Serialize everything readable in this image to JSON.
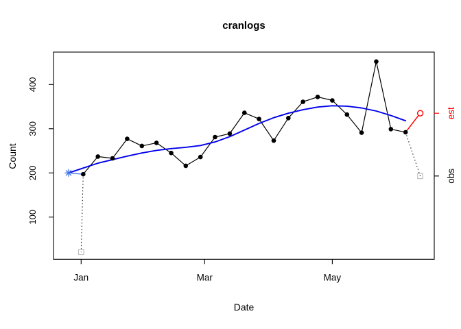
{
  "figure": {
    "background": "#ffffff",
    "box_color": "#000000"
  },
  "chart_data": {
    "type": "line",
    "title": "cranlogs",
    "xlabel": "Date",
    "ylabel": "Count",
    "x_unit": "days since Jan 1",
    "xlim": [
      -13.2,
      168.7
    ],
    "ylim": [
      4.5,
      473.4
    ],
    "grid": false,
    "x_ticks": [
      {
        "label": "Jan",
        "day": 0
      },
      {
        "label": "Mar",
        "day": 59
      },
      {
        "label": "May",
        "day": 120
      }
    ],
    "y_ticks": [
      {
        "label": "100",
        "value": 100
      },
      {
        "label": "200",
        "value": 200
      },
      {
        "label": "300",
        "value": 300
      },
      {
        "label": "400",
        "value": 400
      }
    ],
    "right_axis_ticks": [
      {
        "label": "est",
        "value": 335,
        "color": "#ff0000"
      },
      {
        "label": "obs",
        "value": 193,
        "color": "#000000"
      }
    ],
    "series": [
      {
        "name": "observed-weekly-counts",
        "style": "line+points",
        "marker": "filled-circle",
        "color": "#000000",
        "days": [
          1,
          8,
          15,
          22,
          29,
          36,
          43,
          50,
          57,
          64,
          71,
          78,
          85,
          92,
          99,
          106,
          113,
          120,
          127,
          134,
          141,
          148,
          155
        ],
        "values": [
          197,
          237,
          233,
          277,
          261,
          268,
          245,
          216,
          236,
          281,
          289,
          336,
          322,
          273,
          324,
          361,
          372,
          364,
          332,
          291,
          452,
          299,
          292
        ]
      },
      {
        "name": "smoothed-estimate",
        "style": "line",
        "marker": "none",
        "color": "#0000ee",
        "days": [
          -6,
          1,
          8,
          15,
          22,
          29,
          36,
          43,
          50,
          57,
          64,
          71,
          78,
          85,
          92,
          99,
          106,
          113,
          120,
          127,
          134,
          141,
          148,
          155
        ],
        "values": [
          200,
          211,
          222,
          230,
          238,
          245,
          251,
          255,
          258,
          262,
          270,
          282,
          297,
          312,
          325,
          335,
          343,
          349,
          352,
          351,
          347,
          340,
          330,
          318
        ]
      }
    ],
    "annotations": {
      "init_estimate_marker": {
        "marker": "asterisk",
        "color": "#4678e8",
        "day": -6,
        "value": 200
      },
      "init_connector": {
        "style": "solid",
        "color": "#4678e8",
        "from": {
          "day": -6,
          "value": 200
        },
        "to": {
          "day": 1,
          "value": 197
        }
      },
      "forecast_connector": {
        "style": "solid",
        "color": "#ff0000",
        "from": {
          "day": 155,
          "value": 292
        },
        "to": {
          "day": 162,
          "value": 335
        }
      },
      "forecast_point": {
        "marker": "open-circle",
        "color": "#ff0000",
        "day": 162,
        "value": 335
      },
      "partial_obs_points": [
        {
          "marker": "open-square",
          "color": "#bebebe",
          "day": 0,
          "value": 21
        },
        {
          "marker": "open-square",
          "color": "#bebebe",
          "day": 162,
          "value": 193
        }
      ],
      "dotted_connectors": [
        {
          "style": "dotted",
          "color": "#000000",
          "from": {
            "day": 1,
            "value": 197
          },
          "to": {
            "day": 0,
            "value": 21
          }
        },
        {
          "style": "dotted",
          "color": "#000000",
          "from": {
            "day": 155,
            "value": 292
          },
          "to": {
            "day": 162,
            "value": 193
          }
        }
      ]
    }
  }
}
